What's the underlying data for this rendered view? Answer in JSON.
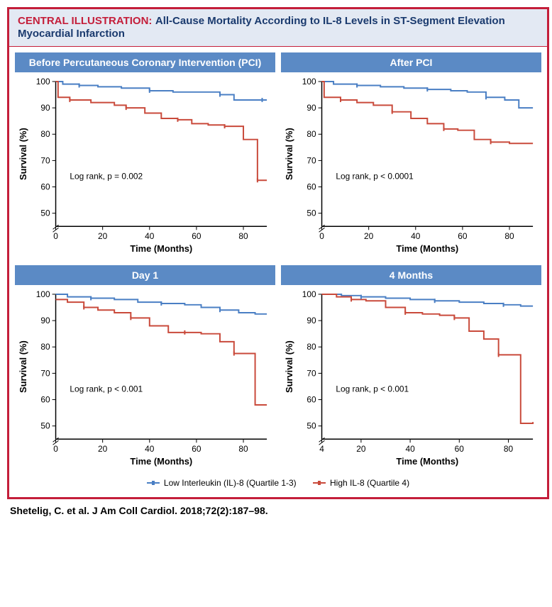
{
  "header": {
    "label": "CENTRAL ILLUSTRATION:",
    "title": "All-Cause Mortality According to IL-8 Levels in ST-Segment Elevation Myocardial Infarction"
  },
  "colors": {
    "border": "#c41e3a",
    "header_bg": "#e3e9f3",
    "panel_header_bg": "#5b8ac5",
    "low_line": "#4a7fc4",
    "high_line": "#c94a3b",
    "axis": "#000000"
  },
  "axes": {
    "ylabel": "Survival (%)",
    "xlabel": "Time (Months)",
    "ymin": 45,
    "ymax": 100,
    "yticks": [
      50,
      60,
      70,
      80,
      90,
      100
    ],
    "xmin_default": 0,
    "xmax": 90,
    "xticks_default": [
      0,
      20,
      40,
      60,
      80
    ],
    "xticks_panel4": [
      4,
      20,
      40,
      60,
      80
    ]
  },
  "panels": [
    {
      "title": "Before Percutaneous Coronary Intervention (PCI)",
      "stat": "Log rank, p = 0.002",
      "xmin": 0,
      "xticks": [
        0,
        20,
        40,
        60,
        80
      ],
      "low": [
        [
          0,
          100
        ],
        [
          3,
          99
        ],
        [
          10,
          98.5
        ],
        [
          18,
          98
        ],
        [
          28,
          97.5
        ],
        [
          40,
          96.5
        ],
        [
          50,
          96
        ],
        [
          60,
          96
        ],
        [
          70,
          95
        ],
        [
          76,
          93
        ],
        [
          80,
          93
        ],
        [
          88,
          93
        ],
        [
          90,
          93
        ]
      ],
      "high": [
        [
          0,
          100
        ],
        [
          1,
          94
        ],
        [
          6,
          93
        ],
        [
          15,
          92
        ],
        [
          25,
          91
        ],
        [
          30,
          90
        ],
        [
          38,
          88
        ],
        [
          45,
          86
        ],
        [
          52,
          85.5
        ],
        [
          58,
          84
        ],
        [
          65,
          83.5
        ],
        [
          72,
          83
        ],
        [
          80,
          78
        ],
        [
          85,
          78
        ],
        [
          86,
          62.5
        ],
        [
          90,
          62.5
        ]
      ]
    },
    {
      "title": "After PCI",
      "stat": "Log rank, p < 0.0001",
      "xmin": 0,
      "xticks": [
        0,
        20,
        40,
        60,
        80
      ],
      "low": [
        [
          0,
          100
        ],
        [
          5,
          99
        ],
        [
          15,
          98.5
        ],
        [
          25,
          98
        ],
        [
          35,
          97.5
        ],
        [
          45,
          97
        ],
        [
          55,
          96.5
        ],
        [
          62,
          96
        ],
        [
          70,
          94
        ],
        [
          78,
          93
        ],
        [
          84,
          90
        ],
        [
          90,
          90
        ]
      ],
      "high": [
        [
          0,
          100
        ],
        [
          1,
          94
        ],
        [
          8,
          93
        ],
        [
          15,
          92
        ],
        [
          22,
          91
        ],
        [
          30,
          88.5
        ],
        [
          38,
          86
        ],
        [
          45,
          84
        ],
        [
          52,
          82
        ],
        [
          58,
          81.5
        ],
        [
          65,
          78
        ],
        [
          72,
          77
        ],
        [
          80,
          76.5
        ],
        [
          88,
          76.5
        ],
        [
          90,
          76.5
        ]
      ]
    },
    {
      "title": "Day 1",
      "stat": "Log rank, p < 0.001",
      "xmin": 0,
      "xticks": [
        0,
        20,
        40,
        60,
        80
      ],
      "low": [
        [
          0,
          100
        ],
        [
          5,
          99
        ],
        [
          15,
          98.5
        ],
        [
          25,
          98
        ],
        [
          35,
          97
        ],
        [
          45,
          96.5
        ],
        [
          55,
          96
        ],
        [
          62,
          95
        ],
        [
          70,
          94
        ],
        [
          78,
          93
        ],
        [
          85,
          92.5
        ],
        [
          90,
          92.5
        ]
      ],
      "high": [
        [
          0,
          98
        ],
        [
          5,
          97
        ],
        [
          12,
          95
        ],
        [
          18,
          94
        ],
        [
          25,
          93
        ],
        [
          32,
          91
        ],
        [
          40,
          88
        ],
        [
          48,
          85.5
        ],
        [
          55,
          85.5
        ],
        [
          62,
          85
        ],
        [
          70,
          82
        ],
        [
          76,
          77.5
        ],
        [
          82,
          77.5
        ],
        [
          85,
          58
        ],
        [
          90,
          58
        ]
      ]
    },
    {
      "title": "4 Months",
      "stat": "Log rank, p < 0.001",
      "xmin": 4,
      "xticks": [
        4,
        20,
        40,
        60,
        80
      ],
      "low": [
        [
          4,
          100
        ],
        [
          12,
          99.5
        ],
        [
          20,
          99
        ],
        [
          30,
          98.5
        ],
        [
          40,
          98
        ],
        [
          50,
          97.5
        ],
        [
          60,
          97
        ],
        [
          70,
          96.5
        ],
        [
          78,
          96
        ],
        [
          85,
          95.5
        ],
        [
          90,
          95.5
        ]
      ],
      "high": [
        [
          4,
          100
        ],
        [
          10,
          99
        ],
        [
          16,
          98
        ],
        [
          22,
          97.5
        ],
        [
          30,
          95
        ],
        [
          38,
          93
        ],
        [
          45,
          92.5
        ],
        [
          52,
          92
        ],
        [
          58,
          91
        ],
        [
          64,
          86
        ],
        [
          70,
          83
        ],
        [
          76,
          77
        ],
        [
          82,
          77
        ],
        [
          85,
          51
        ],
        [
          90,
          51.5
        ]
      ]
    }
  ],
  "legend": {
    "low_label": "Low Interleukin (IL)-8 (Quartile 1-3)",
    "high_label": "High IL-8 (Quartile 4)"
  },
  "citation": "Shetelig, C. et al. J Am Coll Cardiol. 2018;72(2):187–98."
}
